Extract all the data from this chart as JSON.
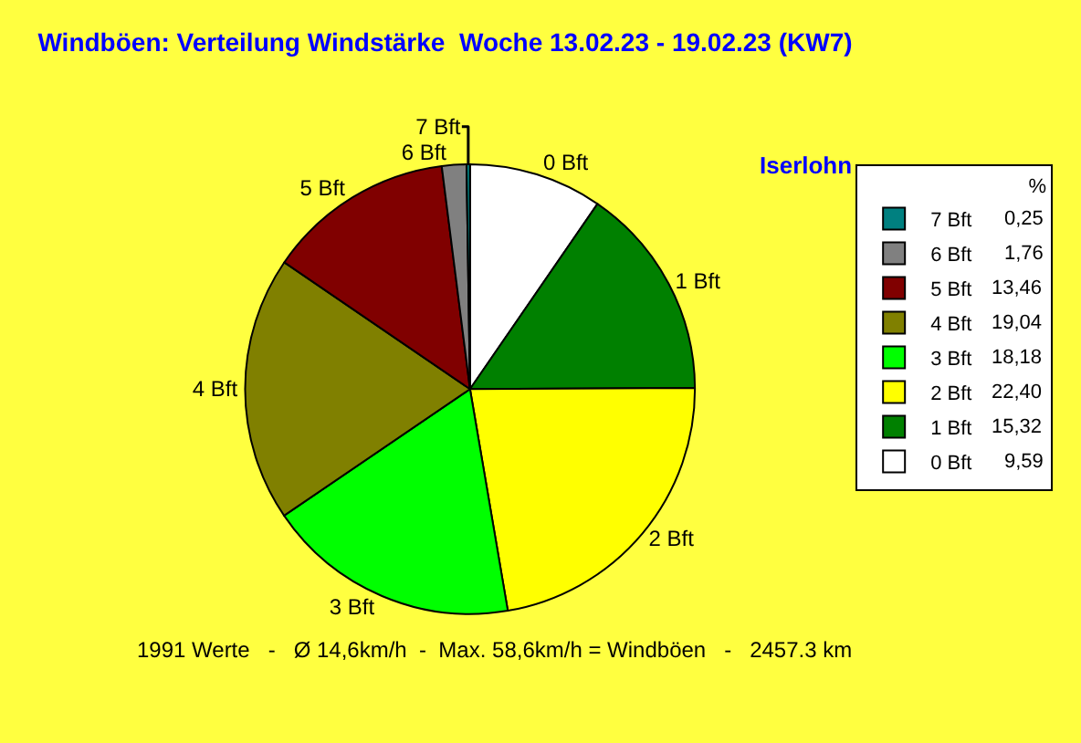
{
  "chart_data": {
    "type": "pie",
    "title": "Windböen: Verteilung Windstärke  Woche 13.02.23 - 19.02.23 (KW7)",
    "subtitle": "Iserlohn",
    "categories": [
      "0 Bft",
      "1 Bft",
      "2 Bft",
      "3 Bft",
      "4 Bft",
      "5 Bft",
      "6 Bft",
      "7 Bft"
    ],
    "values": [
      9.59,
      15.32,
      22.4,
      18.18,
      19.04,
      13.46,
      1.76,
      0.25
    ],
    "value_labels": [
      "9,59",
      "15,32",
      "22,40",
      "18,18",
      "19,04",
      "13,46",
      "1,76",
      "0,25"
    ],
    "colors": [
      "#ffffff",
      "#008000",
      "#ffff00",
      "#00ff00",
      "#808000",
      "#800000",
      "#808080",
      "#008080"
    ],
    "legend_title": "%",
    "legend": "top right",
    "annotations": [
      "1991 Werte   -   Ø 14,6km/h  -  Max. 58,6km/h = Windböen   -   2457.3 km"
    ]
  }
}
